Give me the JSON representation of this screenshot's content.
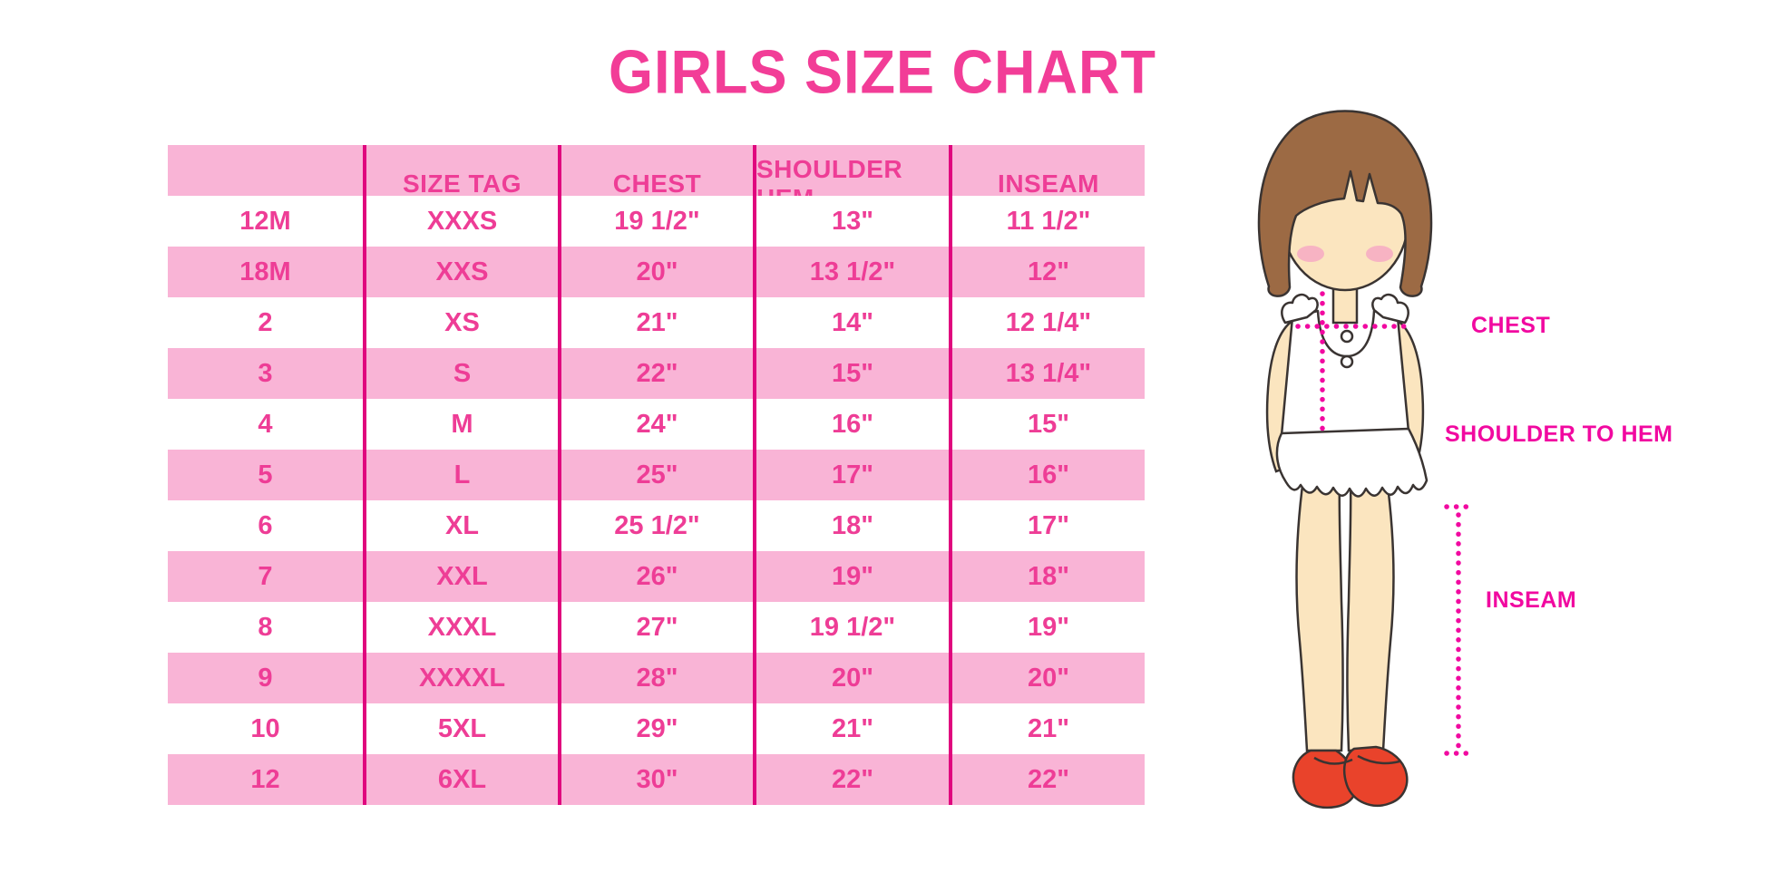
{
  "title": "GIRLS SIZE CHART",
  "table": {
    "columns": [
      "",
      "SIZE TAG",
      "CHEST",
      "SHOULDER HEM",
      "INSEAM"
    ],
    "rows": [
      [
        "12M",
        "XXXS",
        "19 1/2\"",
        "13\"",
        "11 1/2\""
      ],
      [
        "18M",
        "XXS",
        "20\"",
        "13 1/2\"",
        "12\""
      ],
      [
        "2",
        "XS",
        "21\"",
        "14\"",
        "12 1/4\""
      ],
      [
        "3",
        "S",
        "22\"",
        "15\"",
        "13 1/4\""
      ],
      [
        "4",
        "M",
        "24\"",
        "16\"",
        "15\""
      ],
      [
        "5",
        "L",
        "25\"",
        "17\"",
        "16\""
      ],
      [
        "6",
        "XL",
        "25 1/2\"",
        "18\"",
        "17\""
      ],
      [
        "7",
        "XXL",
        "26\"",
        "19\"",
        "18\""
      ],
      [
        "8",
        "XXXL",
        "27\"",
        "19 1/2\"",
        "19\""
      ],
      [
        "9",
        "XXXXL",
        "28\"",
        "20\"",
        "20\""
      ],
      [
        "10",
        "5XL",
        "29\"",
        "21\"",
        "21\""
      ],
      [
        "12",
        "6XL",
        "30\"",
        "22\"",
        "22\""
      ]
    ]
  },
  "figure": {
    "labels": {
      "chest": "CHEST",
      "shoulder_to_hem": "SHOULDER TO HEM",
      "inseam": "INSEAM"
    }
  },
  "colors": {
    "accent_line": "#E0077E",
    "row_pink": "#F9B4D6",
    "text_pink": "#EE3D96",
    "title_pink": "#F23D97",
    "label_magenta": "#F109A0",
    "dotted_line": "#F109A0",
    "hair_brown": "#9C6A44",
    "skin": "#FBE5BF",
    "blush": "#F7B3C3",
    "shoe_red": "#E9432B",
    "outline": "#3A3432"
  }
}
